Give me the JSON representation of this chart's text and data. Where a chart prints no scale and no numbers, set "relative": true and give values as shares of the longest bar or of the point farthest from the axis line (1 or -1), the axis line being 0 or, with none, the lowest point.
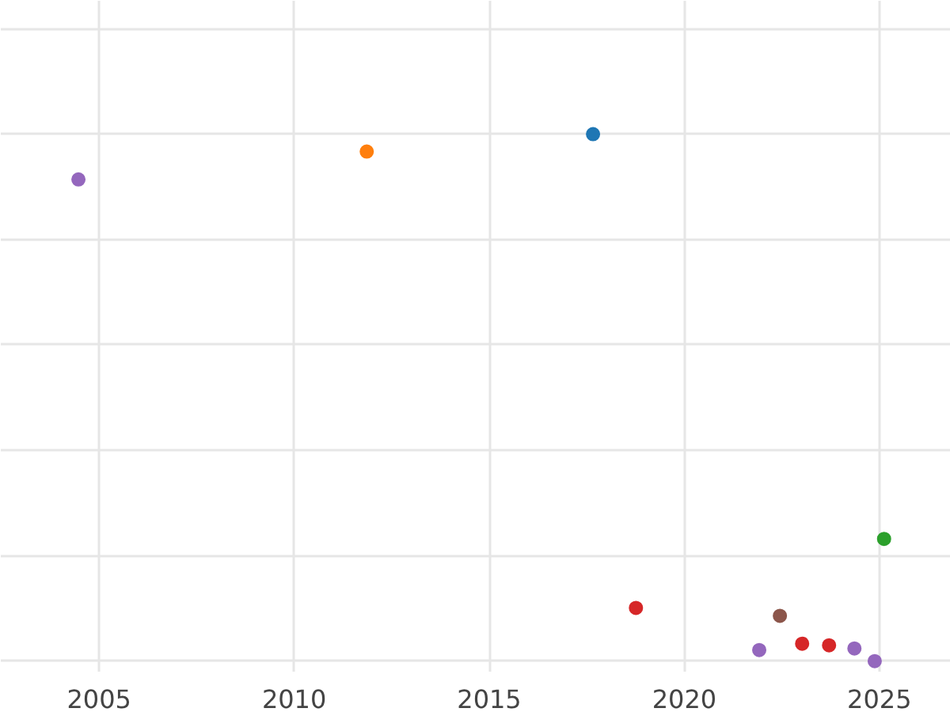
{
  "chart_data": {
    "type": "scatter",
    "relative": true,
    "x": [
      2004.47,
      2011.86,
      2017.66,
      2018.76,
      2021.92,
      2022.45,
      2023.02,
      2023.71,
      2024.36,
      2024.88,
      2025.12
    ],
    "values": [
      0.914,
      0.967,
      1,
      0.101,
      0.021,
      0.086,
      0.033,
      0.03,
      0.024,
      0,
      0.232
    ],
    "colors": [
      "#9467bd",
      "#ff7f0e",
      "#1f77b4",
      "#d62728",
      "#9467bd",
      "#8c564b",
      "#d62728",
      "#d62728",
      "#9467bd",
      "#9467bd",
      "#2ca02c"
    ],
    "xlim": [
      2002.48,
      2026.83
    ],
    "xticks": [
      2005,
      2010,
      2015,
      2020,
      2025
    ],
    "grid": true,
    "marker": "circle",
    "tick_labels": "x"
  }
}
